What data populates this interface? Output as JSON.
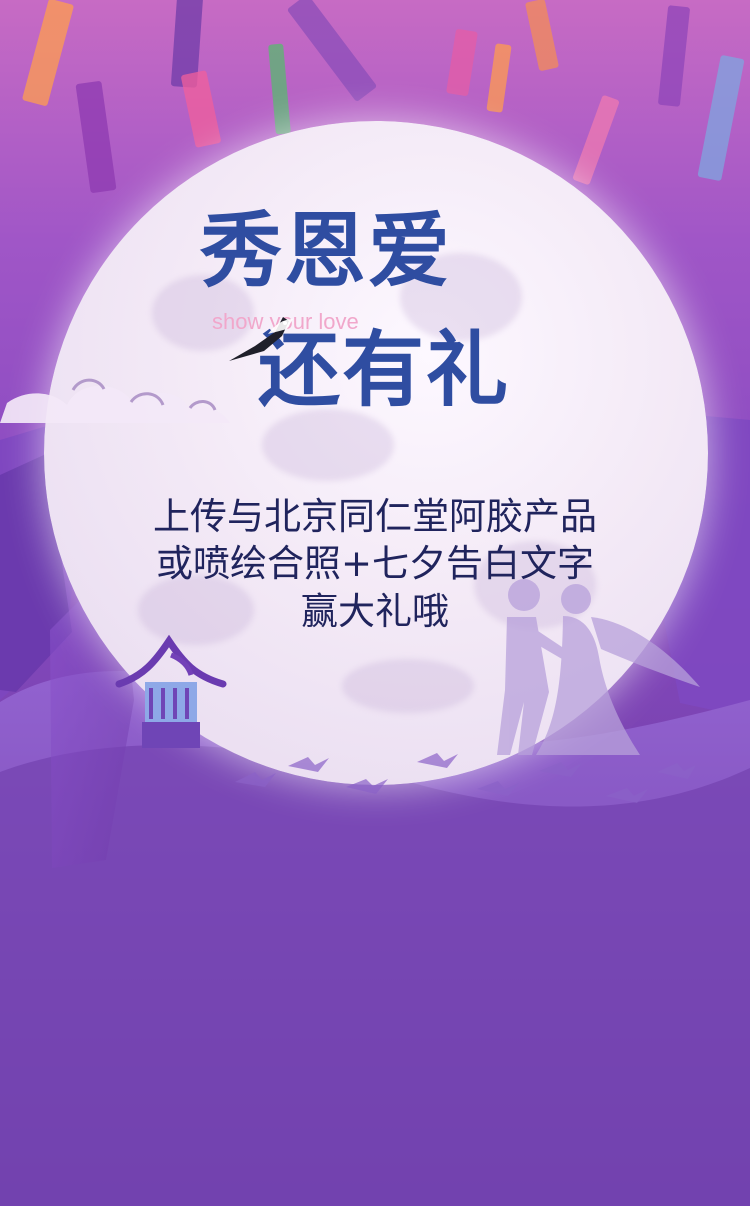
{
  "title": {
    "line1": "秀恩爱",
    "line2": "还有礼",
    "english_slogan": "show your love"
  },
  "description": [
    "上传与北京同仁堂阿胶产品",
    "或喷绘合照+七夕告白文字",
    "赢大礼哦"
  ],
  "colors": {
    "top_background": "#c76bc4",
    "bottom_background": "#6e3fa3",
    "moon": "#f3e9f6",
    "title": "#2f4da1",
    "description": "#20245d",
    "slogan": "#f1a7cb"
  },
  "icons": [
    "ribbon-icon",
    "cloud-icon",
    "magpie-icon",
    "pavilion-icon",
    "couple-silhouette-icon",
    "bird-flock-icon"
  ]
}
